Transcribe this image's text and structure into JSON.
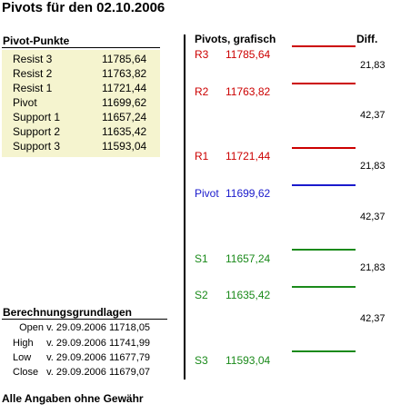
{
  "title": "Pivots für den 02.10.2006",
  "pivot_punkte": {
    "heading": "Pivot-Punkte",
    "rows": [
      {
        "label": "Resist 3",
        "value": "11785,64"
      },
      {
        "label": "Resist 2",
        "value": "11763,82"
      },
      {
        "label": "Resist 1",
        "value": "11721,44"
      },
      {
        "label": "Pivot",
        "value": "11699,62"
      },
      {
        "label": "Support 1",
        "value": "11657,24"
      },
      {
        "label": "Support 2",
        "value": "11635,42"
      },
      {
        "label": "Support 3",
        "value": "11593,04"
      }
    ]
  },
  "berechnung": {
    "heading": "Berechnungsgrundlagen",
    "rows": [
      {
        "label": "Open",
        "date": "v. 29.09.2006",
        "value": "11718,05"
      },
      {
        "label": "High",
        "date": "v. 29.09.2006",
        "value": "11741,99"
      },
      {
        "label": "Low",
        "date": "v. 29.09.2006",
        "value": "11677,79"
      },
      {
        "label": "Close",
        "date": "v. 29.09.2006",
        "value": "11679,07"
      }
    ]
  },
  "disclaimer": "Alle Angaben ohne Gewähr",
  "grafik": {
    "heading": "Pivots, grafisch",
    "diff_heading": "Diff.",
    "levels": [
      {
        "name": "R3",
        "value": "11785,64",
        "color": "#cc0000"
      },
      {
        "name": "R2",
        "value": "11763,82",
        "color": "#cc0000"
      },
      {
        "name": "R1",
        "value": "11721,44",
        "color": "#cc0000"
      },
      {
        "name": "Pivot",
        "value": "11699,62",
        "color": "#1a1acc"
      },
      {
        "name": "S1",
        "value": "11657,24",
        "color": "#1a8a1a"
      },
      {
        "name": "S2",
        "value": "11635,42",
        "color": "#1a8a1a"
      },
      {
        "name": "S3",
        "value": "11593,04",
        "color": "#1a8a1a"
      }
    ],
    "diffs": [
      "21,83",
      "42,37",
      "21,83",
      "42,37",
      "21,83",
      "42,37"
    ]
  }
}
